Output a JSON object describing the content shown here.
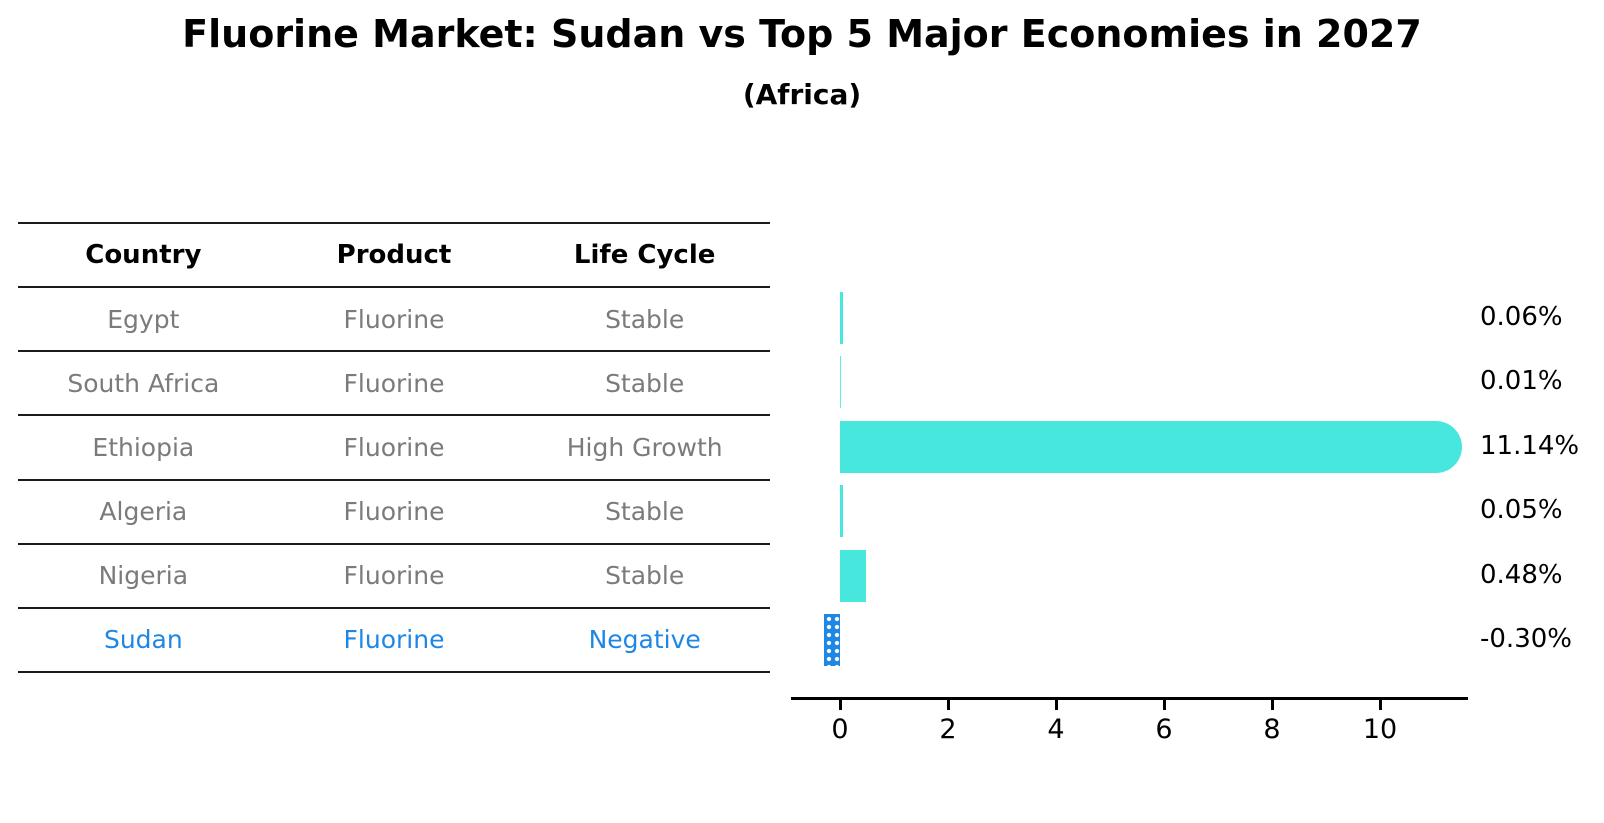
{
  "title": "Fluorine Market: Sudan vs Top 5 Major Economies in 2027",
  "subtitle": "(Africa)",
  "colors": {
    "bar_positive": "#48e7de",
    "bar_negative": "#1e87e5",
    "highlight_text": "#1e87e5",
    "table_text": "#7b7b7b",
    "axis": "#000000"
  },
  "table": {
    "headers": {
      "country": "Country",
      "product": "Product",
      "life_cycle": "Life Cycle"
    },
    "rows": [
      {
        "country": "Egypt",
        "product": "Fluorine",
        "life_cycle": "Stable",
        "highlight": false
      },
      {
        "country": "South Africa",
        "product": "Fluorine",
        "life_cycle": "Stable",
        "highlight": false
      },
      {
        "country": "Ethiopia",
        "product": "Fluorine",
        "life_cycle": "High Growth",
        "highlight": false
      },
      {
        "country": "Algeria",
        "product": "Fluorine",
        "life_cycle": "Stable",
        "highlight": false
      },
      {
        "country": "Nigeria",
        "product": "Fluorine",
        "life_cycle": "Stable",
        "highlight": false
      },
      {
        "country": "Sudan",
        "product": "Fluorine",
        "life_cycle": "Negative",
        "highlight": true
      }
    ]
  },
  "chart_data": {
    "type": "bar",
    "orientation": "horizontal",
    "categories": [
      "Egypt",
      "South Africa",
      "Ethiopia",
      "Algeria",
      "Nigeria",
      "Sudan"
    ],
    "values": [
      0.06,
      0.01,
      11.14,
      0.05,
      0.48,
      -0.3
    ],
    "value_labels": [
      "0.06%",
      "0.01%",
      "11.14%",
      "0.05%",
      "0.48%",
      "-0.30%"
    ],
    "x_ticks": [
      "0",
      "2",
      "4",
      "6",
      "8",
      "10"
    ],
    "xlim": [
      -0.9,
      11.6
    ],
    "grid": false,
    "legend": "none",
    "xlabel": "",
    "ylabel": ""
  }
}
